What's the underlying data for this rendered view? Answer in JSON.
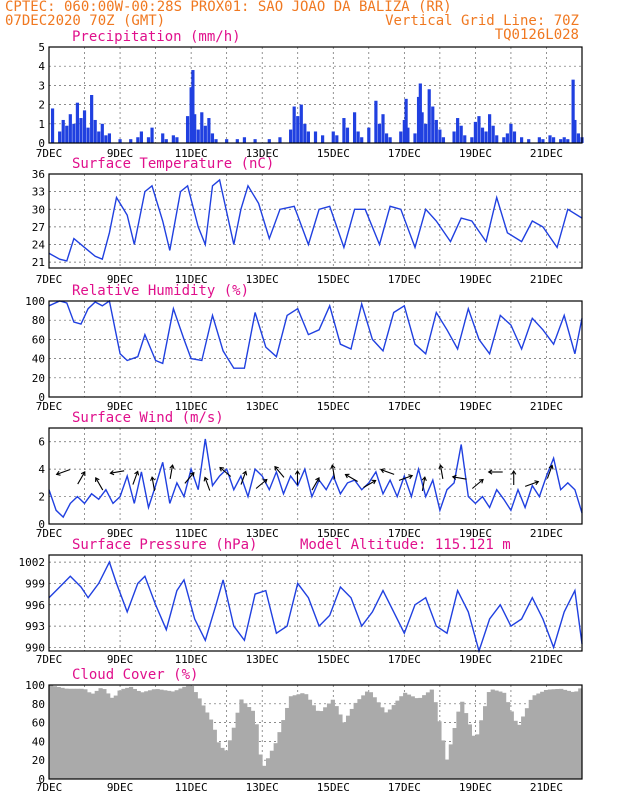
{
  "header": {
    "line1_left": "CPTEC:  060:00W-00:28S  PROX01: SAO JOAO DA BALIZA (RR)",
    "line2_left": "07DEC2020 70Z (GMT)",
    "line2_right": "Vertical Grid Line: 70Z",
    "line3_right": "TQ0126L028"
  },
  "x_labels": [
    "7DEC",
    "9DEC",
    "11DEC",
    "13DEC",
    "15DEC",
    "17DEC",
    "19DEC",
    "21DEC"
  ],
  "x_range_days": [
    0,
    15
  ],
  "colors": {
    "line": "#2040e0",
    "title": "#e0108c",
    "header": "#f07820",
    "cloud": "#aaaaaa"
  },
  "chart_data": [
    {
      "type": "bar",
      "title": "Precipitation (mm/h)",
      "ylim": [
        0,
        5
      ],
      "yticks": [
        "0",
        "1",
        "2",
        "3",
        "4",
        "5"
      ],
      "samples": [
        [
          0.1,
          1.8
        ],
        [
          0.3,
          0.6
        ],
        [
          0.4,
          1.2
        ],
        [
          0.5,
          0.9
        ],
        [
          0.6,
          1.5
        ],
        [
          0.7,
          1.0
        ],
        [
          0.8,
          2.1
        ],
        [
          0.9,
          1.3
        ],
        [
          1.0,
          1.7
        ],
        [
          1.1,
          0.8
        ],
        [
          1.2,
          2.5
        ],
        [
          1.3,
          1.2
        ],
        [
          1.4,
          0.6
        ],
        [
          1.5,
          1.0
        ],
        [
          1.6,
          0.4
        ],
        [
          1.7,
          0.5
        ],
        [
          2.0,
          0.2
        ],
        [
          2.3,
          0.2
        ],
        [
          2.5,
          0.3
        ],
        [
          2.6,
          0.6
        ],
        [
          2.8,
          0.3
        ],
        [
          2.9,
          0.8
        ],
        [
          3.2,
          0.5
        ],
        [
          3.3,
          0.2
        ],
        [
          3.5,
          0.4
        ],
        [
          3.6,
          0.3
        ],
        [
          3.9,
          1.4
        ],
        [
          4.0,
          2.9
        ],
        [
          4.05,
          3.8
        ],
        [
          4.1,
          1.5
        ],
        [
          4.2,
          0.7
        ],
        [
          4.3,
          1.6
        ],
        [
          4.4,
          0.9
        ],
        [
          4.5,
          1.3
        ],
        [
          4.6,
          0.5
        ],
        [
          4.7,
          0.2
        ],
        [
          5.0,
          0.2
        ],
        [
          5.3,
          0.2
        ],
        [
          5.5,
          0.3
        ],
        [
          5.8,
          0.2
        ],
        [
          6.2,
          0.2
        ],
        [
          6.5,
          0.3
        ],
        [
          6.8,
          0.7
        ],
        [
          6.9,
          1.9
        ],
        [
          7.0,
          1.4
        ],
        [
          7.1,
          2.0
        ],
        [
          7.2,
          1.0
        ],
        [
          7.3,
          0.6
        ],
        [
          7.5,
          0.6
        ],
        [
          7.7,
          0.4
        ],
        [
          8.0,
          0.6
        ],
        [
          8.1,
          0.4
        ],
        [
          8.3,
          1.3
        ],
        [
          8.4,
          0.8
        ],
        [
          8.6,
          1.6
        ],
        [
          8.7,
          0.6
        ],
        [
          8.8,
          0.3
        ],
        [
          9.0,
          0.8
        ],
        [
          9.2,
          2.2
        ],
        [
          9.3,
          1.0
        ],
        [
          9.4,
          1.5
        ],
        [
          9.5,
          0.5
        ],
        [
          9.6,
          0.3
        ],
        [
          9.9,
          0.6
        ],
        [
          10.0,
          1.2
        ],
        [
          10.05,
          2.3
        ],
        [
          10.1,
          0.8
        ],
        [
          10.3,
          0.5
        ],
        [
          10.4,
          2.4
        ],
        [
          10.45,
          3.1
        ],
        [
          10.5,
          1.6
        ],
        [
          10.6,
          1.0
        ],
        [
          10.7,
          2.8
        ],
        [
          10.8,
          1.9
        ],
        [
          10.9,
          1.2
        ],
        [
          11.0,
          0.7
        ],
        [
          11.1,
          0.3
        ],
        [
          11.4,
          0.6
        ],
        [
          11.5,
          1.3
        ],
        [
          11.6,
          0.9
        ],
        [
          11.7,
          0.4
        ],
        [
          11.9,
          0.3
        ],
        [
          12.0,
          1.1
        ],
        [
          12.1,
          1.4
        ],
        [
          12.2,
          0.8
        ],
        [
          12.3,
          0.6
        ],
        [
          12.4,
          1.5
        ],
        [
          12.5,
          0.9
        ],
        [
          12.6,
          0.4
        ],
        [
          12.8,
          0.3
        ],
        [
          12.9,
          0.5
        ],
        [
          13.0,
          1.0
        ],
        [
          13.1,
          0.6
        ],
        [
          13.3,
          0.3
        ],
        [
          13.5,
          0.2
        ],
        [
          13.8,
          0.3
        ],
        [
          13.9,
          0.2
        ],
        [
          14.1,
          0.4
        ],
        [
          14.2,
          0.3
        ],
        [
          14.4,
          0.2
        ],
        [
          14.5,
          0.3
        ],
        [
          14.6,
          0.2
        ],
        [
          14.75,
          3.3
        ],
        [
          14.8,
          1.2
        ],
        [
          14.9,
          0.5
        ],
        [
          15.0,
          0.3
        ]
      ]
    },
    {
      "type": "line",
      "title": "Surface Temperature (nC)",
      "ylim": [
        20,
        36
      ],
      "yticks": [
        "21",
        "24",
        "27",
        "30",
        "33",
        "36"
      ],
      "x": [
        0,
        0.3,
        0.5,
        0.7,
        1.0,
        1.3,
        1.5,
        1.7,
        1.9,
        2.2,
        2.4,
        2.7,
        2.9,
        3.2,
        3.4,
        3.7,
        3.9,
        4.2,
        4.4,
        4.6,
        4.8,
        5.2,
        5.4,
        5.6,
        5.9,
        6.2,
        6.5,
        6.9,
        7.3,
        7.6,
        7.9,
        8.3,
        8.6,
        8.9,
        9.3,
        9.6,
        9.9,
        10.3,
        10.6,
        10.9,
        11.3,
        11.6,
        11.9,
        12.3,
        12.6,
        12.9,
        13.3,
        13.6,
        13.9,
        14.3,
        14.6,
        15.0
      ],
      "y": [
        22.5,
        21.5,
        21.2,
        25.0,
        23.5,
        22.0,
        21.5,
        26.0,
        32.0,
        29.0,
        24.0,
        33.0,
        34.0,
        28.0,
        23.0,
        33.0,
        34.0,
        27.0,
        24.0,
        34.0,
        35.0,
        24.0,
        30.0,
        34.0,
        31.0,
        25.0,
        30.0,
        30.5,
        24.0,
        30.0,
        30.5,
        23.5,
        30.0,
        30.0,
        24.0,
        30.5,
        30.0,
        23.5,
        30.0,
        28.0,
        24.5,
        28.5,
        28.0,
        24.5,
        32.0,
        26.0,
        24.5,
        28.0,
        27.0,
        23.5,
        30.0,
        28.5
      ]
    },
    {
      "type": "line",
      "title": "Relative Humidity (%)",
      "ylim": [
        0,
        100
      ],
      "yticks": [
        "0",
        "20",
        "40",
        "60",
        "80",
        "100"
      ],
      "x": [
        0,
        0.3,
        0.5,
        0.7,
        0.9,
        1.1,
        1.3,
        1.5,
        1.7,
        2.0,
        2.2,
        2.5,
        2.7,
        3.0,
        3.2,
        3.5,
        3.8,
        4.0,
        4.3,
        4.6,
        4.9,
        5.2,
        5.5,
        5.8,
        6.1,
        6.4,
        6.7,
        7.0,
        7.3,
        7.6,
        7.9,
        8.2,
        8.5,
        8.8,
        9.1,
        9.4,
        9.7,
        10.0,
        10.3,
        10.6,
        10.9,
        11.2,
        11.5,
        11.8,
        12.1,
        12.4,
        12.7,
        13.0,
        13.3,
        13.6,
        13.9,
        14.2,
        14.5,
        14.8,
        15.0
      ],
      "y": [
        95,
        100,
        98,
        78,
        76,
        92,
        99,
        95,
        100,
        45,
        38,
        42,
        65,
        38,
        35,
        92,
        60,
        40,
        38,
        85,
        48,
        30,
        30,
        88,
        52,
        42,
        85,
        92,
        65,
        70,
        95,
        55,
        50,
        97,
        60,
        48,
        88,
        95,
        55,
        45,
        88,
        70,
        50,
        92,
        60,
        45,
        85,
        75,
        50,
        82,
        70,
        55,
        85,
        45,
        82
      ]
    },
    {
      "type": "line",
      "title": "Surface Wind (m/s)",
      "ylim": [
        0,
        7
      ],
      "yticks": [
        "0",
        "2",
        "4",
        "6"
      ],
      "x": [
        0,
        0.2,
        0.4,
        0.6,
        0.8,
        1.0,
        1.2,
        1.4,
        1.6,
        1.8,
        2.0,
        2.2,
        2.4,
        2.6,
        2.8,
        3.0,
        3.2,
        3.4,
        3.6,
        3.8,
        4.0,
        4.2,
        4.4,
        4.6,
        4.8,
        5.0,
        5.2,
        5.4,
        5.6,
        5.8,
        6.0,
        6.2,
        6.4,
        6.6,
        6.8,
        7.0,
        7.2,
        7.4,
        7.6,
        7.8,
        8.0,
        8.2,
        8.4,
        8.6,
        8.8,
        9.0,
        9.2,
        9.4,
        9.6,
        9.8,
        10.0,
        10.2,
        10.4,
        10.6,
        10.8,
        11.0,
        11.2,
        11.4,
        11.6,
        11.8,
        12.0,
        12.2,
        12.4,
        12.6,
        12.8,
        13.0,
        13.2,
        13.4,
        13.6,
        13.8,
        14.0,
        14.2,
        14.4,
        14.6,
        14.8,
        15.0
      ],
      "y": [
        2.5,
        1.0,
        0.5,
        1.5,
        2.0,
        1.5,
        2.2,
        1.8,
        2.5,
        1.5,
        2.0,
        3.5,
        1.5,
        3.8,
        1.2,
        2.8,
        4.5,
        1.5,
        3.0,
        2.0,
        4.0,
        2.5,
        6.2,
        2.8,
        3.5,
        4.0,
        2.5,
        3.5,
        2.0,
        4.0,
        3.5,
        2.5,
        3.8,
        2.2,
        3.5,
        2.8,
        4.0,
        2.0,
        3.2,
        2.5,
        3.5,
        2.2,
        3.0,
        3.2,
        2.5,
        3.0,
        3.8,
        2.2,
        3.2,
        2.0,
        3.5,
        2.0,
        4.0,
        2.0,
        3.2,
        1.0,
        2.5,
        3.0,
        5.8,
        2.0,
        1.5,
        2.0,
        1.2,
        2.5,
        1.8,
        1.0,
        2.5,
        1.2,
        2.8,
        2.0,
        3.5,
        4.8,
        2.5,
        3.0,
        2.5,
        0.8
      ]
    },
    {
      "type": "line",
      "title": "Surface Pressure (hPa)",
      "annotation": "Model Altitude: 115.121 m",
      "ylim": [
        989.5,
        1003
      ],
      "yticks": [
        "990",
        "993",
        "996",
        "999",
        "1002"
      ],
      "x": [
        0,
        0.3,
        0.6,
        0.9,
        1.1,
        1.4,
        1.7,
        1.9,
        2.2,
        2.5,
        2.7,
        3.0,
        3.3,
        3.6,
        3.8,
        4.1,
        4.4,
        4.7,
        4.9,
        5.2,
        5.5,
        5.8,
        6.1,
        6.4,
        6.7,
        7.0,
        7.3,
        7.6,
        7.9,
        8.2,
        8.5,
        8.8,
        9.1,
        9.4,
        9.7,
        10.0,
        10.3,
        10.6,
        10.9,
        11.2,
        11.5,
        11.8,
        12.1,
        12.4,
        12.7,
        13.0,
        13.3,
        13.6,
        13.9,
        14.2,
        14.5,
        14.8,
        15.0
      ],
      "y": [
        997.0,
        998.5,
        1000.0,
        998.5,
        997.0,
        999.0,
        1002.0,
        999.0,
        995.0,
        999.0,
        1000.0,
        996.0,
        992.5,
        998.0,
        999.5,
        994.0,
        991.0,
        996.0,
        999.5,
        993.0,
        991.0,
        997.5,
        998.0,
        992.0,
        993.0,
        999.0,
        997.0,
        993.0,
        994.5,
        998.5,
        997.0,
        993.0,
        995.0,
        998.0,
        995.0,
        992.0,
        996.0,
        997.0,
        993.0,
        992.0,
        998.0,
        995.0,
        989.5,
        994.0,
        996.0,
        993.0,
        994.0,
        997.0,
        994.0,
        990.0,
        995.0,
        998.0,
        990.5
      ]
    },
    {
      "type": "area",
      "title": "Cloud Cover (%)",
      "ylim": [
        0,
        100
      ],
      "yticks": [
        "0",
        "20",
        "40",
        "60",
        "80",
        "100"
      ],
      "x": [
        0,
        0.5,
        1.0,
        1.2,
        1.5,
        1.8,
        2.0,
        2.3,
        2.6,
        3.0,
        3.5,
        3.8,
        4.0,
        4.2,
        4.6,
        4.8,
        5.0,
        5.2,
        5.4,
        5.8,
        6.0,
        6.4,
        6.8,
        7.2,
        7.6,
        8.0,
        8.3,
        8.6,
        9.0,
        9.5,
        10.0,
        10.4,
        10.8,
        11.2,
        11.6,
        12.0,
        12.4,
        12.8,
        13.2,
        13.6,
        14.0,
        14.4,
        14.8,
        15.0
      ],
      "y": [
        100,
        96,
        96,
        90,
        98,
        85,
        95,
        98,
        92,
        96,
        93,
        98,
        100,
        88,
        60,
        35,
        30,
        55,
        85,
        70,
        10,
        40,
        88,
        92,
        70,
        85,
        60,
        80,
        95,
        70,
        92,
        85,
        96,
        20,
        85,
        40,
        96,
        92,
        55,
        88,
        95,
        96,
        92,
        98
      ]
    }
  ]
}
